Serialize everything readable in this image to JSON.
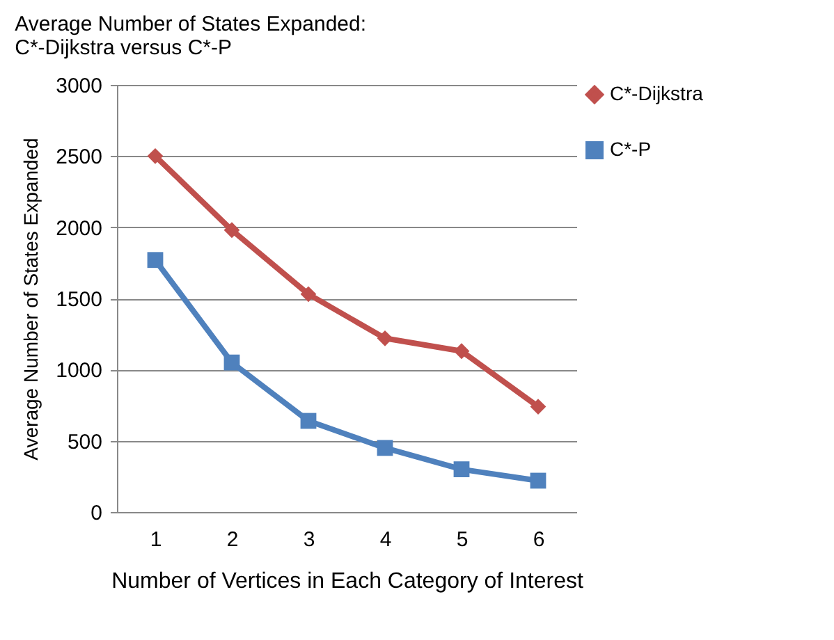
{
  "chart_data": {
    "type": "line",
    "title": "Average Number of States Expanded: C*-Dijkstra versus C*-P",
    "xlabel": "Number of Vertices in Each Category of Interest",
    "ylabel": "Average Number of States Expanded",
    "categories": [
      "1",
      "2",
      "3",
      "4",
      "5",
      "6"
    ],
    "series": [
      {
        "name": "C*-Dijkstra",
        "color": "#c0504d",
        "marker": "diamond",
        "values": [
          2500,
          1980,
          1530,
          1220,
          1130,
          740
        ]
      },
      {
        "name": "C*-P",
        "color": "#4f81bd",
        "marker": "square",
        "values": [
          1770,
          1050,
          640,
          450,
          300,
          220
        ]
      }
    ],
    "ylim": [
      0,
      3000
    ],
    "yticks": [
      0,
      500,
      1000,
      1500,
      2000,
      2500,
      3000
    ],
    "grid": "y",
    "legend": "right",
    "line_style": "solid"
  }
}
